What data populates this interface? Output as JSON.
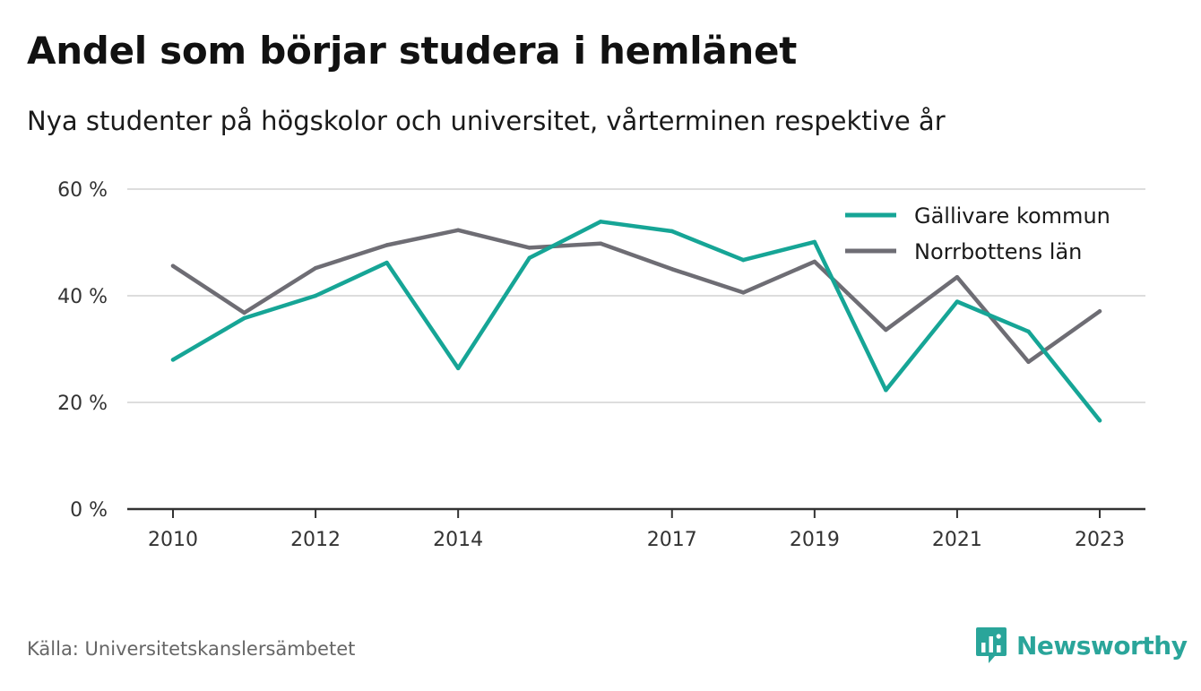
{
  "header": {
    "title": "Andel som börjar studera i hemlänet",
    "subtitle": "Nya studenter på högskolor och universitet, vårterminen respektive år"
  },
  "footer": {
    "source": "Källa: Universitetskanslersämbetet",
    "brand": "Newsworthy",
    "brand_icon": "bar-chart-speech-bubble-icon"
  },
  "colors": {
    "gallivare": "#16a596",
    "norrbotten": "#6e6d74",
    "grid": "#dddddd",
    "axis": "#333333",
    "brand": "#2aa59a"
  },
  "chart_data": {
    "type": "line",
    "title": "Andel som börjar studera i hemlänet",
    "subtitle": "Nya studenter på högskolor och universitet, vårterminen respektive år",
    "x": [
      2010,
      2011,
      2012,
      2013,
      2014,
      2015,
      2016,
      2017,
      2018,
      2019,
      2020,
      2021,
      2022,
      2023
    ],
    "x_tick_values": [
      2010,
      2012,
      2014,
      2017,
      2019,
      2021,
      2023
    ],
    "x_tick_labels": [
      "2010",
      "2012",
      "2014",
      "2017",
      "2019",
      "2021",
      "2023"
    ],
    "y_tick_values": [
      0,
      20,
      40,
      60
    ],
    "y_tick_labels": [
      "0 %",
      "20 %",
      "40 %",
      "60 %"
    ],
    "ylim": [
      0,
      60
    ],
    "grid": true,
    "legend_position": "top-right",
    "series": [
      {
        "name": "Gällivare kommun",
        "color": "#16a596",
        "values": [
          28.0,
          35.8,
          40.0,
          46.2,
          26.4,
          47.1,
          53.9,
          52.1,
          46.7,
          50.1,
          22.3,
          38.9,
          33.3,
          16.6
        ]
      },
      {
        "name": "Norrbottens län",
        "color": "#6e6d74",
        "values": [
          45.6,
          36.8,
          45.2,
          49.5,
          52.3,
          49.0,
          49.8,
          45.0,
          40.6,
          46.4,
          33.6,
          43.5,
          27.6,
          37.1
        ]
      }
    ]
  }
}
